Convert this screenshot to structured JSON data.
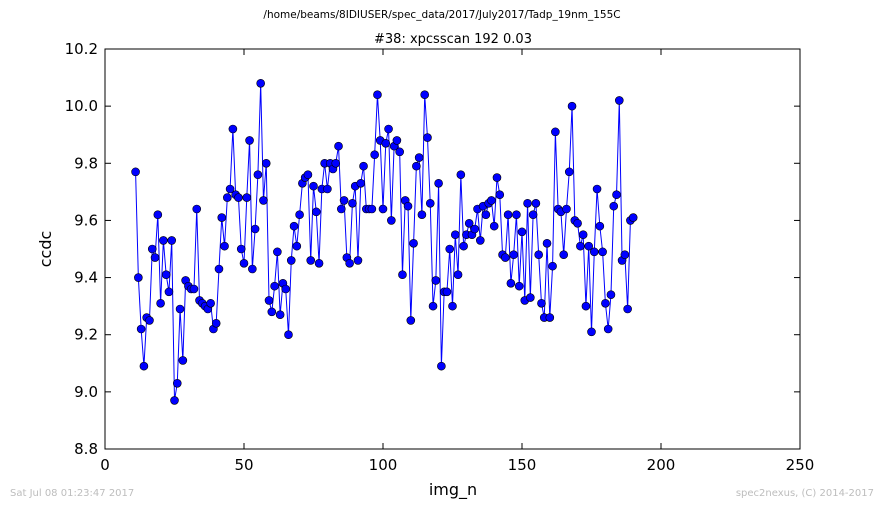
{
  "suptitle": "/home/beams/8IDIUSER/spec_data/2017/July2017/Tadp_19nm_155C",
  "footer": {
    "timestamp": "Sat Jul 08 01:23:47 2017",
    "credit": "spec2nexus, (C) 2014-2017"
  },
  "chart_data": {
    "type": "line",
    "title": "#38: xpcsscan 192 0.03",
    "xlabel": "img_n",
    "ylabel": "ccdc",
    "xlim": [
      0,
      250
    ],
    "ylim": [
      8.8,
      10.2
    ],
    "xticks": [
      "0",
      "50",
      "100",
      "150",
      "200",
      "250"
    ],
    "yticks": [
      "8.8",
      "9.0",
      "9.2",
      "9.4",
      "9.6",
      "9.8",
      "10.0",
      "10.2"
    ],
    "grid": false,
    "series_color": "#0000ff",
    "marker": "circle",
    "x_start": 11,
    "y": [
      9.77,
      9.4,
      9.22,
      9.09,
      9.26,
      9.25,
      9.5,
      9.47,
      9.62,
      9.31,
      9.53,
      9.41,
      9.35,
      9.53,
      8.97,
      9.03,
      9.29,
      9.11,
      9.39,
      9.37,
      9.36,
      9.36,
      9.64,
      9.32,
      9.31,
      9.3,
      9.29,
      9.31,
      9.22,
      9.24,
      9.43,
      9.61,
      9.51,
      9.68,
      9.71,
      9.92,
      9.69,
      9.68,
      9.5,
      9.45,
      9.68,
      9.88,
      9.43,
      9.57,
      9.76,
      10.08,
      9.67,
      9.8,
      9.32,
      9.28,
      9.37,
      9.49,
      9.27,
      9.38,
      9.36,
      9.2,
      9.46,
      9.58,
      9.51,
      9.62,
      9.73,
      9.75,
      9.76,
      9.46,
      9.72,
      9.63,
      9.45,
      9.71,
      9.8,
      9.71,
      9.8,
      9.78,
      9.8,
      9.86,
      9.64,
      9.67,
      9.47,
      9.45,
      9.66,
      9.72,
      9.46,
      9.73,
      9.79,
      9.64,
      9.64,
      9.64,
      9.83,
      10.04,
      9.88,
      9.64,
      9.87,
      9.92,
      9.6,
      9.86,
      9.88,
      9.84,
      9.41,
      9.67,
      9.65,
      9.25,
      9.52,
      9.79,
      9.82,
      9.62,
      10.04,
      9.89,
      9.66,
      9.3,
      9.39,
      9.73,
      9.09,
      9.35,
      9.35,
      9.5,
      9.3,
      9.55,
      9.41,
      9.76,
      9.51,
      9.55,
      9.59,
      9.55,
      9.57,
      9.64,
      9.53,
      9.65,
      9.62,
      9.66,
      9.67,
      9.58,
      9.75,
      9.69,
      9.48,
      9.47,
      9.62,
      9.38,
      9.48,
      9.62,
      9.37,
      9.56,
      9.32,
      9.66,
      9.33,
      9.62,
      9.66,
      9.48,
      9.31,
      9.26,
      9.52,
      9.26,
      9.44,
      9.91,
      9.64,
      9.63,
      9.48,
      9.64,
      9.77,
      10.0,
      9.6,
      9.59,
      9.51,
      9.55,
      9.3,
      9.51,
      9.21,
      9.49,
      9.71,
      9.58,
      9.49,
      9.31,
      9.22,
      9.34,
      9.65,
      9.69,
      10.02,
      9.46,
      9.48,
      9.29,
      9.6,
      9.61
    ]
  }
}
